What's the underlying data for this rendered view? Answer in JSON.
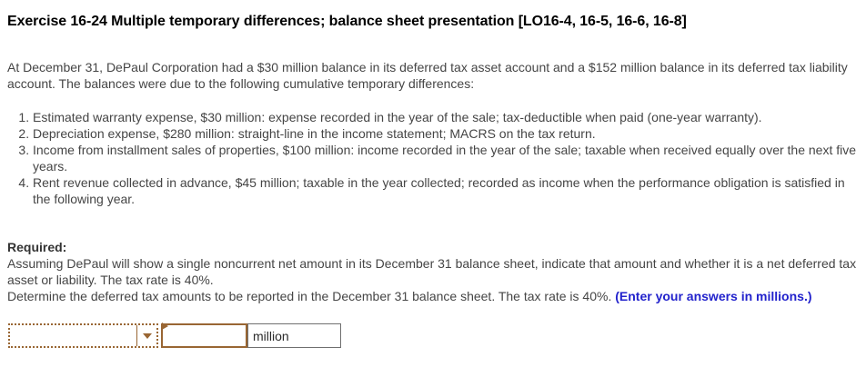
{
  "page": {
    "title": "Exercise 16-24 Multiple temporary differences; balance sheet presentation [LO16-4, 16-5, 16-6, 16-8]",
    "intro": "At December 31, DePaul Corporation had a $30 million balance in its deferred tax asset account and a $152 million balance in its deferred tax liability account. The balances were due to the following cumulative temporary differences:",
    "items": [
      "Estimated warranty expense, $30 million: expense recorded in the year of the sale; tax-deductible when paid (one-year warranty).",
      "Depreciation expense, $280 million: straight-line in the income statement; MACRS on the tax return.",
      "Income from installment sales of properties, $100 million: income recorded in the year of the sale; taxable when received equally over the next five years.",
      "Rent revenue collected in advance, $45 million; taxable in the year collected; recorded as income when the performance obligation is satisfied in the following year."
    ],
    "required_label": "Required:",
    "required_para1": "Assuming DePaul will show a single noncurrent net amount in its December 31 balance sheet, indicate that amount and whether it is a net deferred tax asset or liability. The tax rate is 40%.",
    "required_para2": "Determine the deferred tax amounts to be reported in the December 31 balance sheet. The tax rate is 40%.",
    "required_para2_emphasis": "(Enter your answers in millions.)",
    "answer": {
      "dropdown_value": "",
      "input_value": "",
      "unit_label": "million"
    },
    "icons": {
      "chevron_down": "▾",
      "input_marker": "▸"
    },
    "colors": {
      "accent_brown": "#996633",
      "emphasis_blue": "#2222cc",
      "body_text": "#454545",
      "unit_cell_border": "#6f6f6f"
    }
  }
}
